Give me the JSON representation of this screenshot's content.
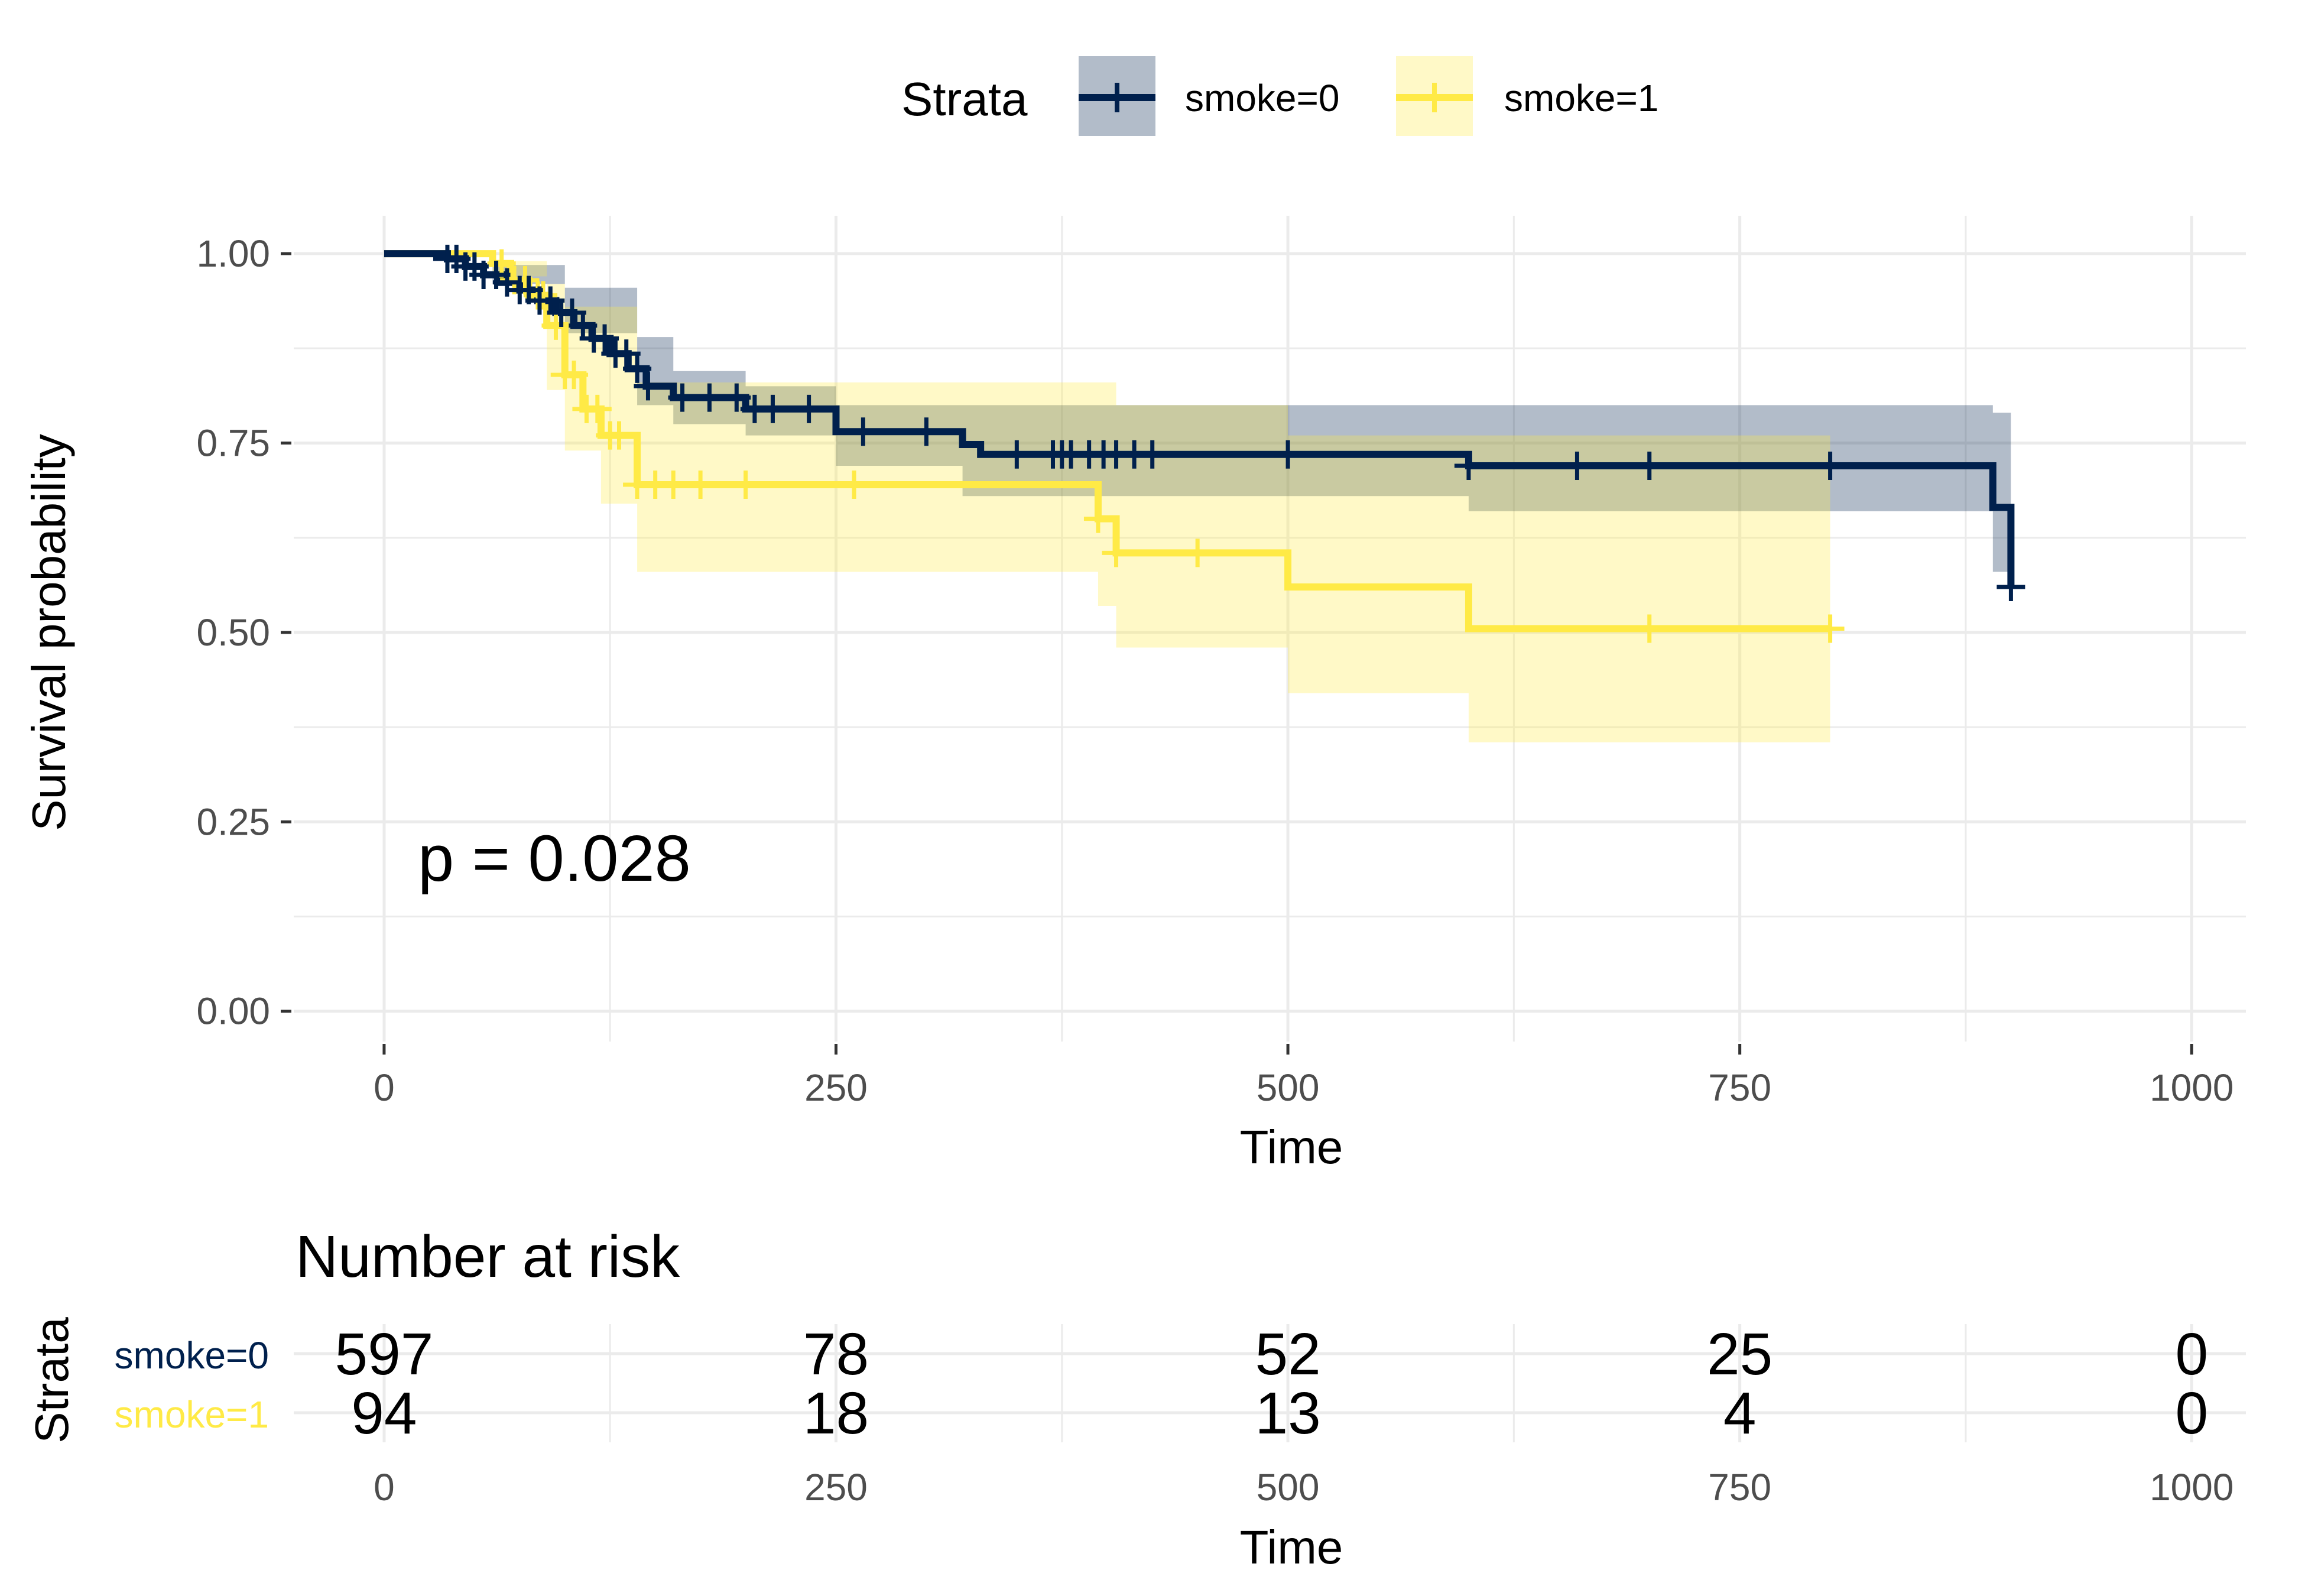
{
  "colors": {
    "smoke0": "#00204D",
    "smoke1": "#FFEA46",
    "ci_smoke0": "rgba(0,32,77,0.30)",
    "ci_smoke1": "rgba(255,234,70,0.30)",
    "grid": "#EBEBEB",
    "background": "#FFFFFF"
  },
  "legend": {
    "title": "Strata",
    "items": [
      "smoke=0",
      "smoke=1"
    ],
    "placement": "top"
  },
  "annotation": {
    "pvalue": "p = 0.028"
  },
  "risk_table": {
    "title": "Number at risk",
    "ylabel": "Strata",
    "xlabel": "Time",
    "times": [
      0,
      250,
      500,
      750,
      1000
    ],
    "rows": [
      {
        "label": "smoke=0",
        "values": [
          597,
          78,
          52,
          25,
          0
        ]
      },
      {
        "label": "smoke=1",
        "values": [
          94,
          18,
          13,
          4,
          0
        ]
      }
    ]
  },
  "chart_data": {
    "type": "line",
    "subtype": "kaplan-meier step",
    "xlabel": "Time",
    "ylabel": "Survival probability",
    "xlim": [
      -50,
      1030
    ],
    "ylim": [
      -0.04,
      1.05
    ],
    "x_ticks": [
      0,
      250,
      500,
      750,
      1000
    ],
    "y_ticks": [
      0,
      0.25,
      0.5,
      0.75,
      1.0
    ],
    "y_tick_labels": [
      "0.00",
      "0.25",
      "0.50",
      "0.75",
      "1.00"
    ],
    "grid": true,
    "series": [
      {
        "name": "smoke=0",
        "steps": [
          [
            0,
            1.0
          ],
          [
            35,
            0.993
          ],
          [
            45,
            0.983
          ],
          [
            55,
            0.972
          ],
          [
            65,
            0.962
          ],
          [
            75,
            0.952
          ],
          [
            85,
            0.938
          ],
          [
            95,
            0.922
          ],
          [
            105,
            0.905
          ],
          [
            115,
            0.888
          ],
          [
            125,
            0.868
          ],
          [
            135,
            0.848
          ],
          [
            145,
            0.825
          ],
          [
            160,
            0.81
          ],
          [
            200,
            0.795
          ],
          [
            250,
            0.765
          ],
          [
            320,
            0.748
          ],
          [
            330,
            0.735
          ],
          [
            600,
            0.72
          ],
          [
            890,
            0.665
          ],
          [
            900,
            0.56
          ]
        ],
        "end": 900,
        "ci_upper": [
          [
            0,
            1.0
          ],
          [
            60,
            0.985
          ],
          [
            100,
            0.955
          ],
          [
            140,
            0.89
          ],
          [
            160,
            0.845
          ],
          [
            200,
            0.825
          ],
          [
            250,
            0.8
          ],
          [
            400,
            0.8
          ],
          [
            600,
            0.8
          ],
          [
            890,
            0.79
          ],
          [
            900,
            0.79
          ]
        ],
        "ci_lower": [
          [
            0,
            1.0
          ],
          [
            60,
            0.96
          ],
          [
            100,
            0.895
          ],
          [
            140,
            0.8
          ],
          [
            160,
            0.775
          ],
          [
            200,
            0.76
          ],
          [
            250,
            0.72
          ],
          [
            320,
            0.68
          ],
          [
            600,
            0.66
          ],
          [
            890,
            0.58
          ],
          [
            900,
            0.58
          ]
        ],
        "censor_times": [
          35,
          40,
          45,
          50,
          55,
          62,
          68,
          75,
          80,
          86,
          92,
          98,
          104,
          110,
          116,
          122,
          128,
          134,
          140,
          146,
          165,
          180,
          195,
          205,
          215,
          235,
          265,
          300,
          350,
          370,
          375,
          380,
          390,
          398,
          405,
          415,
          425,
          500,
          600,
          660,
          700,
          800,
          900
        ]
      },
      {
        "name": "smoke=1",
        "steps": [
          [
            0,
            1.0
          ],
          [
            60,
            0.987
          ],
          [
            70,
            0.965
          ],
          [
            80,
            0.945
          ],
          [
            90,
            0.905
          ],
          [
            100,
            0.84
          ],
          [
            110,
            0.795
          ],
          [
            120,
            0.76
          ],
          [
            140,
            0.695
          ],
          [
            395,
            0.65
          ],
          [
            405,
            0.605
          ],
          [
            500,
            0.56
          ],
          [
            600,
            0.505
          ],
          [
            800,
            0.505
          ]
        ],
        "end": 800,
        "ci_upper": [
          [
            0,
            1.0
          ],
          [
            60,
            0.99
          ],
          [
            90,
            0.96
          ],
          [
            100,
            0.93
          ],
          [
            140,
            0.83
          ],
          [
            395,
            0.83
          ],
          [
            405,
            0.8
          ],
          [
            500,
            0.76
          ],
          [
            600,
            0.76
          ],
          [
            800,
            0.76
          ]
        ],
        "ci_lower": [
          [
            0,
            1.0
          ],
          [
            60,
            0.97
          ],
          [
            90,
            0.82
          ],
          [
            100,
            0.74
          ],
          [
            120,
            0.67
          ],
          [
            140,
            0.58
          ],
          [
            395,
            0.535
          ],
          [
            405,
            0.48
          ],
          [
            500,
            0.42
          ],
          [
            600,
            0.355
          ],
          [
            800,
            0.355
          ]
        ],
        "censor_times": [
          65,
          72,
          78,
          85,
          88,
          95,
          100,
          105,
          112,
          118,
          125,
          130,
          140,
          150,
          160,
          175,
          200,
          260,
          395,
          405,
          450,
          700,
          800
        ]
      }
    ]
  }
}
